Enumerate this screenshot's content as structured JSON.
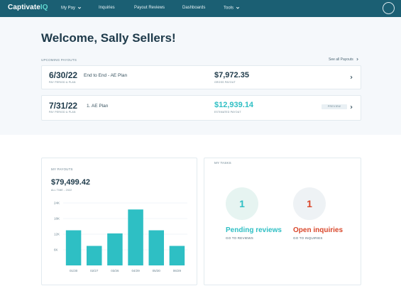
{
  "nav": {
    "brand_main": "Captivate",
    "brand_accent": "IQ",
    "items": [
      "My Pay",
      "Inquiries",
      "Payout Reviews",
      "Dashboards",
      "Tools"
    ]
  },
  "welcome": "Welcome, Sally Sellers!",
  "upcoming": {
    "title": "UPCOMING PAYOUTS",
    "see_all": "See all Payouts",
    "payouts": [
      {
        "date": "6/30/22",
        "date_label": "PAY PERIOD & PLAN",
        "plan": "End to End - AE Plan",
        "amount": "$7,972.35",
        "amount_label": "GROSS PAYOUT",
        "amount_color": "#1e3a4a"
      },
      {
        "date": "7/31/22",
        "date_label": "PAY PERIOD & PLAN",
        "plan": "1. AE Plan",
        "amount": "$12,939.14",
        "amount_label": "ESTIMATED PAYOUT",
        "amount_color": "#2ebfc4",
        "badge": "PREVIEW"
      }
    ]
  },
  "my_payouts": {
    "title": "MY PAYOUTS",
    "total": "$79,499.42",
    "total_label": "ALL TIME - 2022"
  },
  "chart_data": {
    "type": "bar",
    "categories": [
      "01/30",
      "02/27",
      "03/26",
      "04/29",
      "05/30",
      "06/29"
    ],
    "values": [
      13.5,
      7.5,
      12.3,
      21.5,
      13.5,
      7.5
    ],
    "ylim": [
      0,
      24
    ],
    "yticks": [
      6,
      12,
      18,
      24
    ],
    "ytick_labels": [
      "6K",
      "12K",
      "18K",
      "24K"
    ],
    "grid": true,
    "bar_color": "#2ebfc4"
  },
  "tasks": {
    "title": "MY TASKS",
    "items": [
      {
        "count": "1",
        "label": "Pending reviews",
        "link": "GO TO REVIEWS",
        "color": "#2ebfc4",
        "bg": "#e6f4f1"
      },
      {
        "count": "1",
        "label": "Open inquiries",
        "link": "GO TO INQUIRIES",
        "color": "#d9472b",
        "bg": "#eef2f5"
      }
    ]
  }
}
